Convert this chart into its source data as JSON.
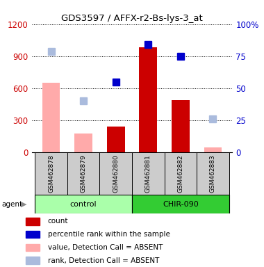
{
  "title": "GDS3597 / AFFX-r2-Bs-lys-3_at",
  "samples": [
    "GSM462878",
    "GSM462879",
    "GSM462880",
    "GSM462881",
    "GSM462882",
    "GSM462883"
  ],
  "groups": [
    {
      "label": "control",
      "indices": [
        0,
        1,
        2
      ],
      "color": "#aaffaa"
    },
    {
      "label": "CHIR-090",
      "indices": [
        3,
        4,
        5
      ],
      "color": "#33cc33"
    }
  ],
  "bar_values_red": [
    null,
    null,
    240,
    980,
    490,
    null
  ],
  "bar_values_pink": [
    650,
    175,
    null,
    null,
    null,
    45
  ],
  "dot_values_blue_leftscale": [
    null,
    null,
    660,
    1010,
    900,
    null
  ],
  "dot_values_lightblue_leftscale": [
    940,
    480,
    null,
    null,
    null,
    310
  ],
  "ylim_left": [
    0,
    1200
  ],
  "yticks_left": [
    0,
    300,
    600,
    900,
    1200
  ],
  "yticks_right": [
    0,
    25,
    50,
    75,
    100
  ],
  "yticklabels_right": [
    "0",
    "25",
    "50",
    "75",
    "100%"
  ],
  "bar_width": 0.55,
  "red_color": "#cc0000",
  "pink_color": "#ffaaaa",
  "blue_color": "#0000cc",
  "lightblue_color": "#aabbdd",
  "gray_sample_bg": "#cccccc",
  "group_control_color": "#aaffaa",
  "group_chir_color": "#33cc33"
}
